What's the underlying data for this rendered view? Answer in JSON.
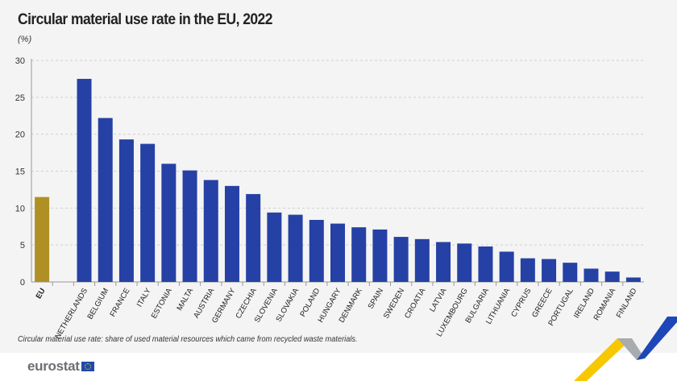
{
  "title": "Circular material use rate in the EU, 2022",
  "unit": "(%)",
  "footnote": "Circular material use rate: share of used material resources which came from recycled waste materials.",
  "logo_text": "eurostat",
  "colors": {
    "eu_bar": "#b09024",
    "country_bar": "#2541a5",
    "background": "#f4f4f4"
  },
  "chart_data": {
    "type": "bar",
    "title": "Circular material use rate in the EU, 2022",
    "ylabel": "(%)",
    "ylim": [
      0,
      30
    ],
    "yticks": [
      0,
      5,
      10,
      15,
      20,
      25,
      30
    ],
    "grid": true,
    "categories": [
      "EU",
      "NETHERLANDS",
      "BELGIUM",
      "FRANCE",
      "ITALY",
      "ESTONIA",
      "MALTA",
      "AUSTRIA",
      "GERMANY",
      "CZECHIA",
      "SLOVENIA",
      "SLOVAKIA",
      "POLAND",
      "HUNGARY",
      "DENMARK",
      "SPAIN",
      "SWEDEN",
      "CROATIA",
      "LATVIA",
      "LUXEMBOURG",
      "BULGARIA",
      "LITHUANIA",
      "CYPRUS",
      "GREECE",
      "PORTUGAL",
      "IRELAND",
      "ROMANIA",
      "FINLAND"
    ],
    "values": [
      11.5,
      27.5,
      22.2,
      19.3,
      18.7,
      16.0,
      15.1,
      13.8,
      13.0,
      11.9,
      9.4,
      9.1,
      8.4,
      7.9,
      7.4,
      7.1,
      6.1,
      5.8,
      5.4,
      5.2,
      4.8,
      4.1,
      3.2,
      3.1,
      2.6,
      1.8,
      1.4,
      0.6
    ]
  }
}
